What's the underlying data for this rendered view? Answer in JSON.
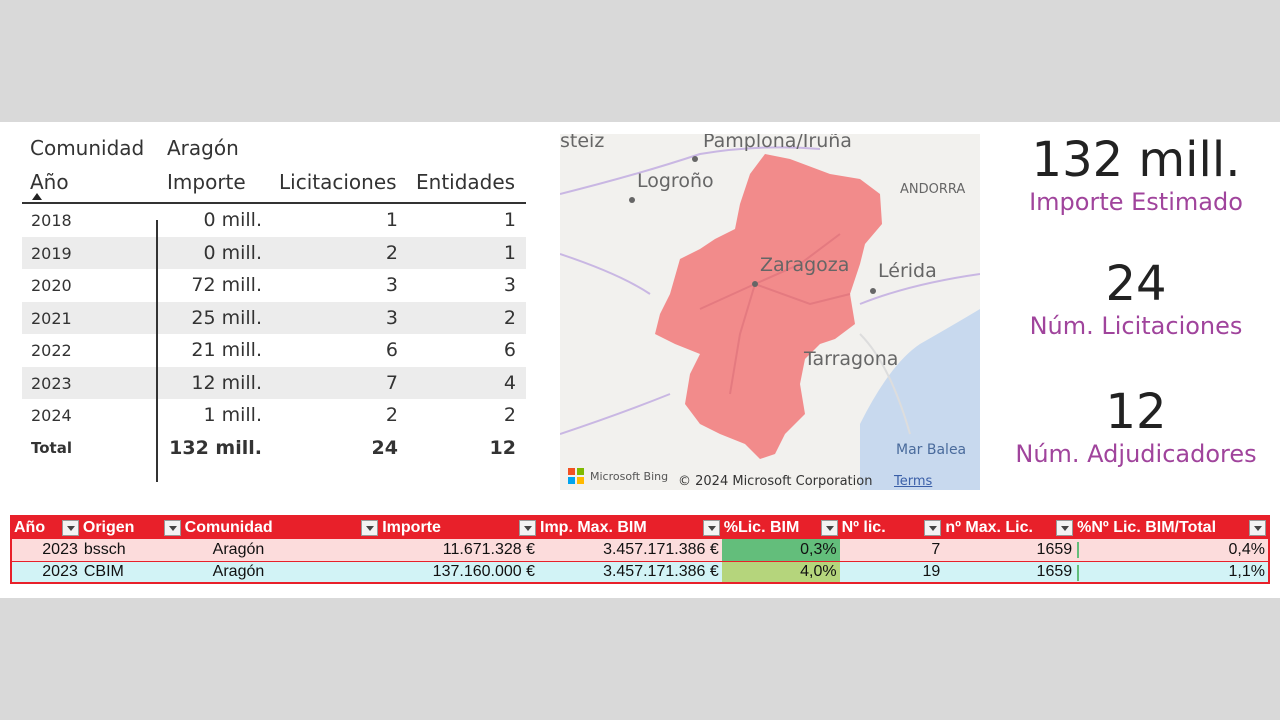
{
  "pivot": {
    "row_header_1": "Comunidad",
    "row_header_1_value": "Aragón",
    "row_header_2": "Año",
    "columns": [
      "Importe",
      "Licitaciones",
      "Entidades"
    ],
    "rows": [
      {
        "year": "2018",
        "importe": "0 mill.",
        "licitaciones": "1",
        "entidades": "1"
      },
      {
        "year": "2019",
        "importe": "0 mill.",
        "licitaciones": "2",
        "entidades": "1"
      },
      {
        "year": "2020",
        "importe": "72 mill.",
        "licitaciones": "3",
        "entidades": "3"
      },
      {
        "year": "2021",
        "importe": "25 mill.",
        "licitaciones": "3",
        "entidades": "2"
      },
      {
        "year": "2022",
        "importe": "21 mill.",
        "licitaciones": "6",
        "entidades": "6"
      },
      {
        "year": "2023",
        "importe": "12 mill.",
        "licitaciones": "7",
        "entidades": "4"
      },
      {
        "year": "2024",
        "importe": "1 mill.",
        "licitaciones": "2",
        "entidades": "2"
      }
    ],
    "total": {
      "label": "Total",
      "importe": "132 mill.",
      "licitaciones": "24",
      "entidades": "12"
    }
  },
  "map": {
    "places": [
      "steiz",
      "Pamplona/Iruña",
      "Logroño",
      "ANDORRA",
      "Zaragoza",
      "Lérida",
      "Tarragona",
      "Mar Balea"
    ],
    "region_color": "#f28b8b",
    "attribution": "Microsoft Bing",
    "copyright": "© 2024 Microsoft Corporation",
    "terms": "Terms"
  },
  "kpis": [
    {
      "value": "132 mill.",
      "label": "Importe Estimado"
    },
    {
      "value": "24",
      "label": "Núm. Licitaciones"
    },
    {
      "value": "12",
      "label": "Núm. Adjudicadores"
    }
  ],
  "excel": {
    "headers": [
      "Año",
      "Origen",
      "Comunidad",
      "Importe",
      "Imp. Max. BIM",
      "%Lic. BIM",
      "Nº lic.",
      "nº Max. Lic.",
      "%Nº Lic. BIM/Total"
    ],
    "rows": [
      {
        "ano": "2023",
        "origen": "bssch",
        "comunidad": "Aragón",
        "importe": "11.671.328 €",
        "imp_max": "3.457.171.386 €",
        "pct_lic": "0,3%",
        "n_lic": "7",
        "n_max": "1659",
        "pct_total": "0,4%"
      },
      {
        "ano": "2023",
        "origen": "CBIM",
        "comunidad": "Aragón",
        "importe": "137.160.000 €",
        "imp_max": "3.457.171.386 €",
        "pct_lic": "4,0%",
        "n_lic": "19",
        "n_max": "1659",
        "pct_total": "1,1%"
      }
    ],
    "header_color": "#e8202a"
  }
}
